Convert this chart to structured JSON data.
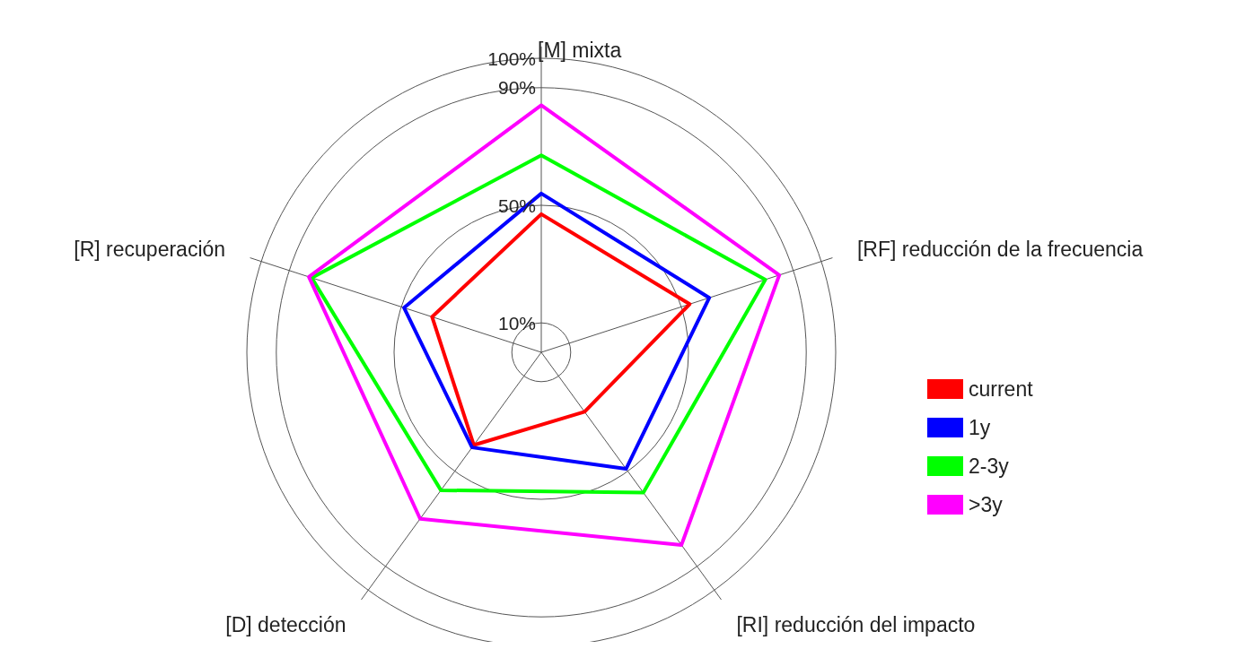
{
  "chart_data": {
    "type": "radar",
    "categories": [
      "[M] mixta",
      "[RF] reducción de la frecuencia",
      "[RI] reducción del impacto",
      "[D] detección",
      "[R] recuperación"
    ],
    "series": [
      {
        "name": "current",
        "color": "#ff0000",
        "values": [
          47,
          53,
          25,
          39,
          39
        ]
      },
      {
        "name": "1y",
        "color": "#0000ff",
        "values": [
          54,
          60,
          49,
          40,
          49
        ]
      },
      {
        "name": "2-3y",
        "color": "#00ff00",
        "values": [
          67,
          80,
          59,
          58,
          82
        ]
      },
      {
        "name": ">3y",
        "color": "#ff00ff",
        "values": [
          84,
          85,
          81,
          70,
          83
        ]
      }
    ],
    "ylim": [
      0,
      100
    ],
    "yticks": [
      {
        "value": 10,
        "label": "10%"
      },
      {
        "value": 50,
        "label": "50%"
      },
      {
        "value": 90,
        "label": "90%"
      },
      {
        "value": 100,
        "label": "100%"
      }
    ],
    "grid": true,
    "legend": "right"
  }
}
